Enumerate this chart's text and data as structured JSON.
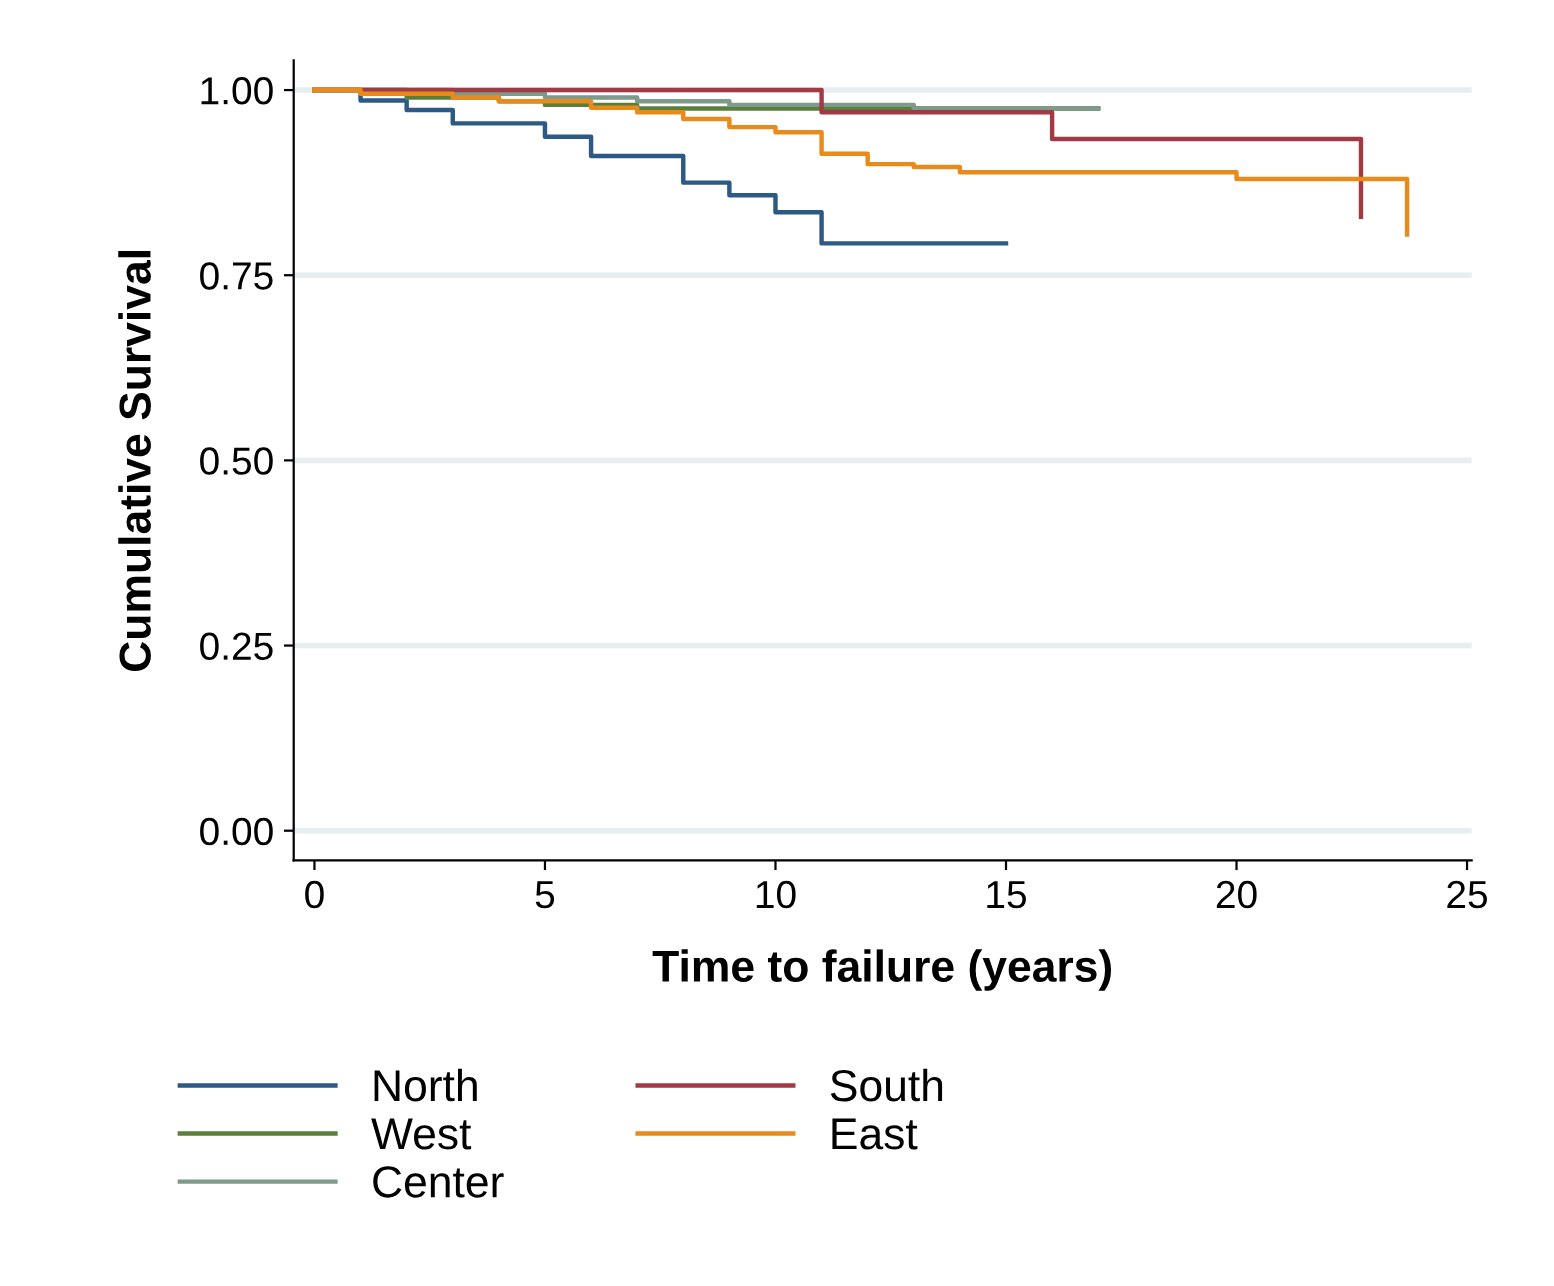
{
  "chart_data": {
    "type": "step",
    "xlabel": "Time to failure (years)",
    "ylabel": "Cumulative Survival",
    "xlim": [
      -0.45,
      25.1
    ],
    "ylim": [
      -0.04,
      1.04
    ],
    "xticks": [
      0,
      5,
      10,
      15,
      20,
      25
    ],
    "yticks": [
      {
        "value": 0,
        "label": "0.00"
      },
      {
        "value": 0.25,
        "label": "0.25"
      },
      {
        "value": 0.5,
        "label": "0.50"
      },
      {
        "value": 0.75,
        "label": "0.75"
      },
      {
        "value": 1,
        "label": "1.00"
      }
    ],
    "grid": "y",
    "legend": "bottom",
    "line_style": "solid",
    "marker": "none",
    "series": [
      {
        "name": "North",
        "color": "#2d5985",
        "x": [
          0,
          1,
          2,
          3,
          5,
          6,
          8,
          9,
          10,
          11,
          15
        ],
        "values": [
          1,
          0.986,
          0.973,
          0.955,
          0.937,
          0.911,
          0.875,
          0.858,
          0.835,
          0.793,
          0.793
        ]
      },
      {
        "name": "West",
        "color": "#5a7f3a",
        "x": [
          0,
          2,
          4,
          5,
          7,
          17
        ],
        "values": [
          1,
          0.99,
          0.985,
          0.98,
          0.975,
          0.975
        ]
      },
      {
        "name": "Center",
        "color": "#7d9a8a",
        "x": [
          0,
          3,
          5,
          7,
          9,
          13,
          17
        ],
        "values": [
          1,
          0.995,
          0.99,
          0.985,
          0.98,
          0.975,
          0.975
        ]
      },
      {
        "name": "South",
        "color": "#a23a45",
        "x": [
          0,
          11,
          16,
          22.7,
          22.7
        ],
        "values": [
          1,
          0.97,
          0.934,
          0.934,
          0.829
        ]
      },
      {
        "name": "East",
        "color": "#e88b1a",
        "x": [
          0,
          1,
          3,
          4,
          6,
          7,
          8,
          9,
          10,
          11,
          12,
          13,
          14,
          20,
          23.7,
          23.7
        ],
        "values": [
          1,
          0.995,
          0.99,
          0.985,
          0.976,
          0.97,
          0.961,
          0.95,
          0.943,
          0.914,
          0.9,
          0.896,
          0.889,
          0.88,
          0.88,
          0.805
        ]
      }
    ]
  }
}
